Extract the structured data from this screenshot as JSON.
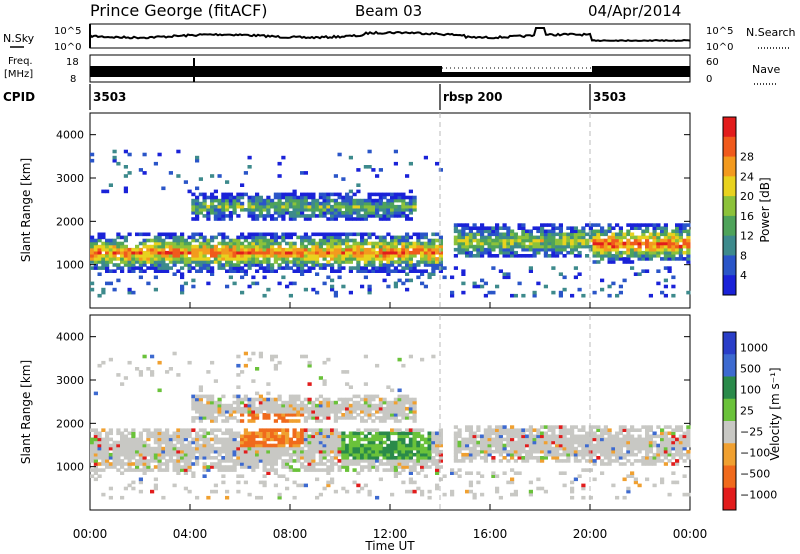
{
  "header": {
    "station": "Prince George (fitACF)",
    "beam": "Beam 03",
    "date": "04/Apr/2014"
  },
  "top_panels": {
    "nsky_label": "N.Sky",
    "nsearch_label": "N.Search",
    "noise_tick_high": "10^5",
    "noise_tick_low": "10^0",
    "freq_label_line1": "Freq.",
    "freq_label_line2": "[MHz]",
    "freq_tick_high": "18",
    "freq_tick_low": "8",
    "nave_label": "Nave",
    "nave_tick_high": "60",
    "nave_tick_low": "0",
    "cpid_label": "CPID",
    "cpid_segments": [
      {
        "label": "3503",
        "start_hour": 0,
        "end_hour": 14
      },
      {
        "label": "rbsp 200",
        "start_hour": 14,
        "end_hour": 20
      },
      {
        "label": "3503",
        "start_hour": 20,
        "end_hour": 24
      }
    ]
  },
  "chart_data": [
    {
      "type": "heatmap",
      "name": "power",
      "ylabel": "Slant Range [km]",
      "ylim": [
        0,
        4500
      ],
      "yticks": [
        "1000",
        "2000",
        "3000",
        "4000"
      ],
      "colorbar_label": "Power [dB]",
      "colorbar_ticks": [
        "4",
        "8",
        "12",
        "16",
        "20",
        "24",
        "28"
      ],
      "colorbar_colors": [
        "#1a22d8",
        "#2a55c8",
        "#3d8a8c",
        "#4ea35a",
        "#8cc23a",
        "#e8d21e",
        "#f39a1e",
        "#f05a1c",
        "#e21c1c"
      ],
      "bands": [
        {
          "x_start": 0,
          "x_end": 14,
          "center_km": 1250,
          "half_width_km": 450,
          "level": 0.8
        },
        {
          "x_start": 4,
          "x_end": 13,
          "center_km": 2300,
          "half_width_km": 300,
          "level": 0.45
        },
        {
          "x_start": 14.5,
          "x_end": 20,
          "center_km": 1500,
          "half_width_km": 400,
          "level": 0.55
        },
        {
          "x_start": 20,
          "x_end": 24,
          "center_km": 1450,
          "half_width_km": 450,
          "level": 0.85
        }
      ]
    },
    {
      "type": "heatmap",
      "name": "velocity",
      "ylabel": "Slant Range [km]",
      "ylim": [
        0,
        4500
      ],
      "yticks": [
        "1000",
        "2000",
        "3000",
        "4000"
      ],
      "colorbar_label": "Velocity [m s⁻¹]",
      "colorbar_ticks": [
        "1000",
        "500",
        "100",
        "25",
        "−25",
        "−100",
        "−500",
        "−1000"
      ],
      "colorbar_colors": [
        "#2a3ec8",
        "#3d6ad0",
        "#2a8a4a",
        "#6ac23a",
        "#c8c8c4",
        "#f0a030",
        "#f06a1c",
        "#e21c1c"
      ],
      "patches": [
        {
          "x_start": 6,
          "x_end": 8.5,
          "center_km": 1800,
          "half_width_km": 400,
          "color": "orange"
        },
        {
          "x_start": 10,
          "x_end": 13.5,
          "center_km": 1450,
          "half_width_km": 350,
          "color": "green"
        }
      ]
    }
  ],
  "x_axis": {
    "label": "Time UT",
    "ticks": [
      "00:00",
      "04:00",
      "08:00",
      "12:00",
      "16:00",
      "20:00",
      "00:00"
    ],
    "xlim": [
      0,
      24
    ]
  }
}
